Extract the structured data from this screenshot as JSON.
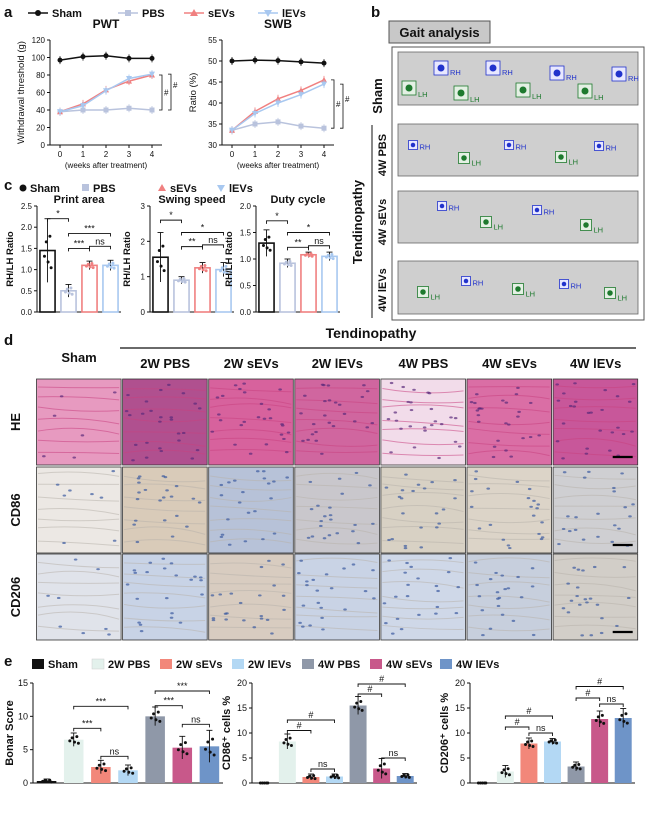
{
  "panels": {
    "a": "a",
    "b": "b",
    "c": "c",
    "d": "d",
    "e": "e"
  },
  "colors": {
    "sham": "#111111",
    "pbs": "#b9c3dd",
    "sevs": "#f08080",
    "levs": "#a8c8f0",
    "e_2wpbs": "#e3f1ec",
    "e_2wsevs": "#f2877a",
    "e_2wlevs": "#b3d8f4",
    "e_4wpbs": "#8f98a8",
    "e_4wsevs": "#c8588a",
    "e_4wlevs": "#6e94c8",
    "rh": "#2233cc",
    "lh": "#1e7a2e"
  },
  "legend_a": [
    "Sham",
    "PBS",
    "sEVs",
    "lEVs"
  ],
  "legend_c": [
    "Sham",
    "PBS",
    "sEVs",
    "lEVs"
  ],
  "legend_e": [
    "Sham",
    "2W PBS",
    "2W sEVs",
    "2W lEVs",
    "4W PBS",
    "4W sEVs",
    "4W lEVs"
  ],
  "chart_data": [
    {
      "type": "line",
      "title": "PWT",
      "xlabel": "(weeks after treatment)",
      "ylabel": "Withdrawal threshold (g)",
      "x": [
        0,
        1,
        2,
        3,
        4
      ],
      "yticks": [
        "0",
        "20",
        "40",
        "60",
        "80",
        "100",
        "120"
      ],
      "ylim": [
        0,
        120
      ],
      "series": [
        {
          "name": "Sham",
          "values": [
            97,
            101,
            102,
            99,
            99
          ]
        },
        {
          "name": "PBS",
          "values": [
            38,
            40,
            40,
            42,
            40
          ]
        },
        {
          "name": "sEVs",
          "values": [
            38,
            47,
            63,
            73,
            80
          ]
        },
        {
          "name": "lEVs",
          "values": [
            38,
            45,
            62,
            76,
            81
          ]
        }
      ],
      "annotations": [
        "#",
        "#"
      ]
    },
    {
      "type": "line",
      "title": "SWB",
      "xlabel": "(weeks after treatment)",
      "ylabel": "Ratio (%)",
      "x": [
        0,
        1,
        2,
        3,
        4
      ],
      "yticks": [
        "30",
        "35",
        "40",
        "45",
        "50",
        "55"
      ],
      "ylim": [
        30,
        55
      ],
      "series": [
        {
          "name": "Sham",
          "values": [
            50,
            50.2,
            50.1,
            49.8,
            49.5
          ]
        },
        {
          "name": "PBS",
          "values": [
            33.5,
            35,
            35.5,
            34.5,
            34
          ]
        },
        {
          "name": "sEVs",
          "values": [
            33.5,
            38,
            41,
            43,
            45.5
          ]
        },
        {
          "name": "lEVs",
          "values": [
            33.5,
            37.5,
            40,
            42,
            44.5
          ]
        }
      ],
      "annotations": [
        "#",
        "#"
      ]
    },
    {
      "type": "bar",
      "title": "Print area",
      "ylabel": "RH/LH Ratio",
      "categories": [
        "Sham",
        "PBS",
        "sEVs",
        "lEVs"
      ],
      "values": [
        1.45,
        0.5,
        1.1,
        1.1
      ],
      "errors": [
        0.75,
        0.15,
        0.1,
        0.12
      ],
      "yticks": [
        "0.0",
        "0.5",
        "1.0",
        "1.5",
        "2.0",
        "2.5"
      ],
      "ylim": [
        0,
        2.5
      ],
      "annotations": [
        "*",
        "***",
        "***",
        "ns"
      ]
    },
    {
      "type": "bar",
      "title": "Swing speed",
      "ylabel": "RH/LH Ratio",
      "categories": [
        "Sham",
        "PBS",
        "sEVs",
        "lEVs"
      ],
      "values": [
        1.55,
        0.9,
        1.25,
        1.2
      ],
      "errors": [
        0.7,
        0.1,
        0.15,
        0.2
      ],
      "yticks": [
        "0",
        "1",
        "2",
        "3"
      ],
      "ylim": [
        0,
        3
      ],
      "annotations": [
        "*",
        "**",
        "*",
        "ns"
      ]
    },
    {
      "type": "bar",
      "title": "Duty cycle",
      "ylabel": "RH/LH Ratio",
      "categories": [
        "Sham",
        "PBS",
        "sEVs",
        "lEVs"
      ],
      "values": [
        1.3,
        0.92,
        1.08,
        1.05
      ],
      "errors": [
        0.25,
        0.08,
        0.05,
        0.08
      ],
      "yticks": [
        "0.0",
        "0.5",
        "1.0",
        "1.5",
        "2.0"
      ],
      "ylim": [
        0,
        2
      ],
      "annotations": [
        "*",
        "**",
        "*",
        "ns"
      ]
    },
    {
      "type": "bar",
      "title": "",
      "ylabel": "Bonar Score",
      "categories": [
        "Sham",
        "2W PBS",
        "2W sEVs",
        "2W lEVs",
        "4W PBS",
        "4W sEVs",
        "4W lEVs"
      ],
      "values": [
        0.3,
        6.5,
        2.4,
        1.9,
        10,
        5.3,
        5.5
      ],
      "errors": [
        0.3,
        1.0,
        1.0,
        0.8,
        1.4,
        1.7,
        2.4
      ],
      "yticks": [
        "0",
        "5",
        "10",
        "15"
      ],
      "ylim": [
        0,
        15
      ],
      "annotations": [
        "***",
        "***",
        "ns",
        "***",
        "***",
        "ns"
      ]
    },
    {
      "type": "bar",
      "title": "",
      "ylabel": "CD86⁺ cells %",
      "categories": [
        "Sham",
        "2W PBS",
        "2W sEVs",
        "2W lEVs",
        "4W PBS",
        "4W sEVs",
        "4W lEVs"
      ],
      "values": [
        0,
        8.3,
        1.2,
        1.3,
        15.5,
        2.9,
        1.4
      ],
      "errors": [
        0,
        1.5,
        0.6,
        0.5,
        1.8,
        2.0,
        0.5
      ],
      "yticks": [
        "0",
        "5",
        "10",
        "15",
        "20"
      ],
      "ylim": [
        0,
        20
      ],
      "annotations": [
        "#",
        "#",
        "ns",
        "#",
        "#",
        "ns"
      ]
    },
    {
      "type": "bar",
      "title": "",
      "ylabel": "CD206⁺ cells %",
      "categories": [
        "Sham",
        "2W PBS",
        "2W sEVs",
        "2W lEVs",
        "4W PBS",
        "4W sEVs",
        "4W lEVs"
      ],
      "values": [
        0,
        2.3,
        7.9,
        8.3,
        3.3,
        12.8,
        13
      ],
      "errors": [
        0,
        1.2,
        1.1,
        0.6,
        0.9,
        1.6,
        1.9
      ],
      "yticks": [
        "0",
        "5",
        "10",
        "15",
        "20"
      ],
      "ylim": [
        0,
        20
      ],
      "annotations": [
        "#",
        "#",
        "ns",
        "#",
        "#",
        "ns"
      ]
    }
  ],
  "gait": {
    "title": "Gait analysis",
    "group": "Tendinopathy",
    "rows": [
      "Sham",
      "4W PBS",
      "4W sEVs",
      "4W lEVs"
    ],
    "rh": "RH",
    "lh": "LH"
  },
  "histo": {
    "group": "Tendinopathy",
    "columns": [
      "Sham",
      "2W PBS",
      "2W sEVs",
      "2W lEVs",
      "4W PBS",
      "4W sEVs",
      "4W lEVs"
    ],
    "rows": [
      "HE",
      "CD86",
      "CD206"
    ]
  }
}
